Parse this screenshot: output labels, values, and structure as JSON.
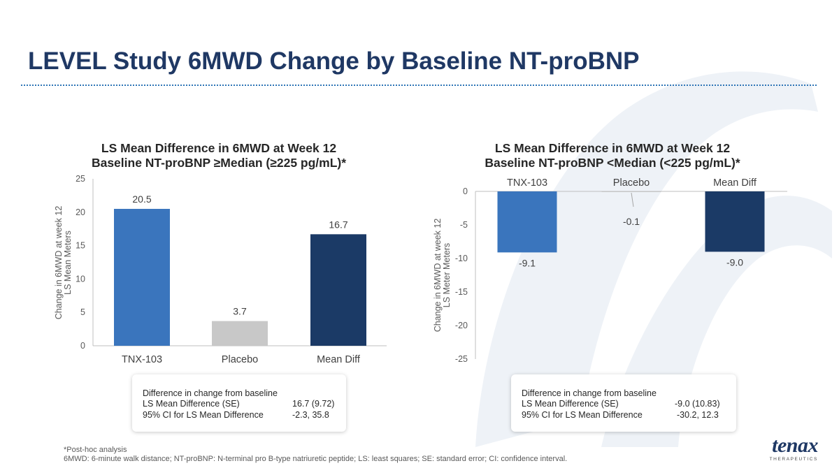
{
  "title": "LEVEL Study 6MWD Change by Baseline NT-proBNP",
  "chart_data": [
    {
      "type": "bar",
      "title_line1": "LS Mean Difference in 6MWD at Week 12",
      "title_line2": "Baseline NT-proBNP ≥Median (≥225 pg/mL)*",
      "ylabel_line1": "Change in 6MWD at week 12",
      "ylabel_line2": "LS Mean Meters",
      "categories": [
        "TNX-103",
        "Placebo",
        "Mean Diff"
      ],
      "values": [
        20.5,
        3.7,
        16.7
      ],
      "value_labels": [
        "20.5",
        "3.7",
        "16.7"
      ],
      "bar_colors": [
        "#3a75bd",
        "#c8c8c8",
        "#1b3a66"
      ],
      "ylim": [
        0,
        25
      ],
      "yticks": [
        0,
        5,
        10,
        15,
        20,
        25
      ],
      "ytick_labels": [
        "0",
        "5",
        "10",
        "15",
        "20",
        "25"
      ],
      "grid": false
    },
    {
      "type": "bar",
      "title_line1": "LS Mean Difference in 6MWD at Week 12",
      "title_line2": "Baseline NT-proBNP <Median (<225 pg/mL)*",
      "ylabel_line1": "Change in 6MWD at week 12",
      "ylabel_line2": "LS Meter Meters",
      "categories": [
        "TNX-103",
        "Placebo",
        "Mean Diff"
      ],
      "values": [
        -9.1,
        -0.1,
        -9.0
      ],
      "value_labels": [
        "-9.1",
        "-0.1",
        "-9.0"
      ],
      "bar_colors": [
        "#3a75bd",
        "#c8c8c8",
        "#1b3a66"
      ],
      "ylim": [
        -25,
        0
      ],
      "yticks": [
        0,
        -5,
        -10,
        -15,
        -20,
        -25
      ],
      "ytick_labels": [
        "0",
        "-5",
        "-10",
        "-15",
        "-20",
        "-25"
      ],
      "grid": false
    }
  ],
  "stat_boxes": [
    {
      "heading": "Difference in change from baseline",
      "row1_label": "LS Mean Difference (SE)",
      "row1_value": "16.7 (9.72)",
      "row2_label": "95% CI for LS Mean Difference",
      "row2_value": "-2.3, 35.8"
    },
    {
      "heading": "Difference in change from baseline",
      "row1_label": "LS Mean Difference (SE)",
      "row1_value": "-9.0 (10.83)",
      "row2_label": "95% CI for LS Mean Difference",
      "row2_value": "-30.2, 12.3"
    }
  ],
  "footnotes": {
    "line1": "*Post-hoc analysis",
    "line2": "6MWD: 6-minute walk distance; NT-proBNP: N-terminal pro B-type natriuretic peptide; LS: least squares; SE: standard error; CI: confidence interval."
  },
  "logo": {
    "wordmark": "tenax",
    "subtitle": "THERAPEUTICS"
  },
  "colors": {
    "title": "#1f3864",
    "divider": "#2e75b6",
    "watermark": "#eef2f7"
  }
}
